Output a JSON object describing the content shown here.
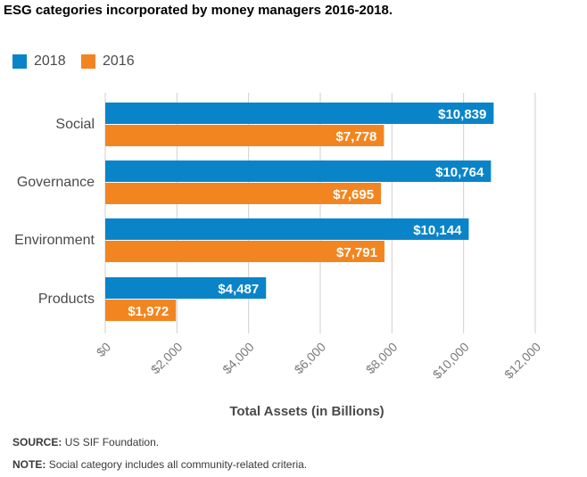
{
  "chart_data": {
    "type": "bar",
    "orientation": "horizontal",
    "title": "ESG categories incorporated by money managers 2016-2018.",
    "xlabel": "Total Assets (in Billions)",
    "ylabel": "",
    "categories": [
      "Social",
      "Governance",
      "Environment",
      "Products"
    ],
    "series": [
      {
        "name": "2018",
        "color": "#0a84c9",
        "values": [
          10839,
          10764,
          10144,
          4487
        ],
        "labels": [
          "$10,839",
          "$10,764",
          "$10,144",
          "$4,487"
        ]
      },
      {
        "name": "2016",
        "color": "#f38520",
        "values": [
          7778,
          7695,
          7791,
          1972
        ],
        "labels": [
          "$7,778",
          "$7,695",
          "$7,791",
          "$1,972"
        ]
      }
    ],
    "xlim": [
      0,
      12000
    ],
    "xticks": [
      0,
      2000,
      4000,
      6000,
      8000,
      10000,
      12000
    ],
    "xtick_labels": [
      "$0",
      "$2,000",
      "$4,000",
      "$6,000",
      "$8,000",
      "$10,000",
      "$12,000"
    ],
    "grid": true,
    "legend_position": "top-left"
  },
  "source": {
    "label": "SOURCE:",
    "text": "US SIF Foundation."
  },
  "note": {
    "label": "NOTE:",
    "text": "Social category includes all community-related criteria."
  }
}
